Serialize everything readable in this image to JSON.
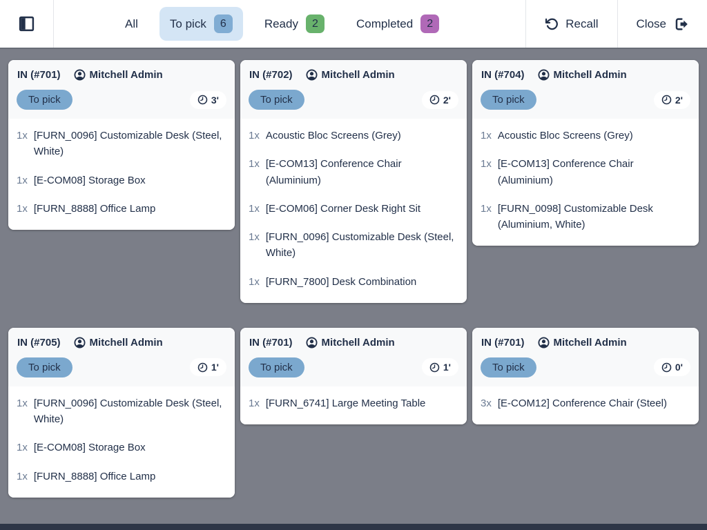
{
  "topbar": {
    "tabs": [
      {
        "label": "All"
      },
      {
        "label": "To pick",
        "count": "6",
        "active": true
      },
      {
        "label": "Ready",
        "count": "2"
      },
      {
        "label": "Completed",
        "count": "2"
      }
    ],
    "recall_label": "Recall",
    "close_label": "Close"
  },
  "icons": {
    "sidebar_toggle": "sidebar-panel-icon",
    "user": "person-circle-icon",
    "clock": "clock-icon",
    "recall": "rotate-ccw-icon",
    "close": "sign-out-icon"
  },
  "colors": {
    "page_bg": "#7b7e88",
    "topbar_bg": "#ffffff",
    "text_navy": "#223049",
    "active_tab_bg": "#d4e5f5",
    "to_pick_badge": "#80acd3",
    "ready_badge": "#68b26c",
    "completed_badge": "#b069b7",
    "status_pill": "#7ba8ce",
    "qty_muted": "#6b7b93",
    "card_top_bg": "#f8f9fa",
    "bottom_bar": "#2e3647"
  },
  "cards": [
    {
      "reference": "IN (#701)",
      "user": "Mitchell Admin",
      "status": "To pick",
      "time": "3'",
      "items": [
        {
          "qty": "1x",
          "name": "[FURN_0096] Customizable Desk (Steel, White)"
        },
        {
          "qty": "1x",
          "name": "[E-COM08] Storage Box"
        },
        {
          "qty": "1x",
          "name": "[FURN_8888] Office Lamp"
        }
      ]
    },
    {
      "reference": "IN (#702)",
      "user": "Mitchell Admin",
      "status": "To pick",
      "time": "2'",
      "items": [
        {
          "qty": "1x",
          "name": "Acoustic Bloc Screens (Grey)"
        },
        {
          "qty": "1x",
          "name": "[E-COM13] Conference Chair (Aluminium)"
        },
        {
          "qty": "1x",
          "name": "[E-COM06] Corner Desk Right Sit"
        },
        {
          "qty": "1x",
          "name": "[FURN_0096] Customizable Desk (Steel, White)"
        },
        {
          "qty": "1x",
          "name": "[FURN_7800] Desk Combination"
        }
      ]
    },
    {
      "reference": "IN (#704)",
      "user": "Mitchell Admin",
      "status": "To pick",
      "time": "2'",
      "items": [
        {
          "qty": "1x",
          "name": "Acoustic Bloc Screens (Grey)"
        },
        {
          "qty": "1x",
          "name": "[E-COM13] Conference Chair (Aluminium)"
        },
        {
          "qty": "1x",
          "name": "[FURN_0098] Customizable Desk (Aluminium, White)"
        }
      ]
    },
    {
      "reference": "IN (#705)",
      "user": "Mitchell Admin",
      "status": "To pick",
      "time": "1'",
      "items": [
        {
          "qty": "1x",
          "name": "[FURN_0096] Customizable Desk (Steel, White)"
        },
        {
          "qty": "1x",
          "name": "[E-COM08] Storage Box"
        },
        {
          "qty": "1x",
          "name": "[FURN_8888] Office Lamp"
        }
      ]
    },
    {
      "reference": "IN (#701)",
      "user": "Mitchell Admin",
      "status": "To pick",
      "time": "1'",
      "items": [
        {
          "qty": "1x",
          "name": "[FURN_6741] Large Meeting Table"
        }
      ]
    },
    {
      "reference": "IN (#701)",
      "user": "Mitchell Admin",
      "status": "To pick",
      "time": "0'",
      "items": [
        {
          "qty": "3x",
          "name": "[E-COM12] Conference Chair (Steel)"
        }
      ]
    }
  ]
}
